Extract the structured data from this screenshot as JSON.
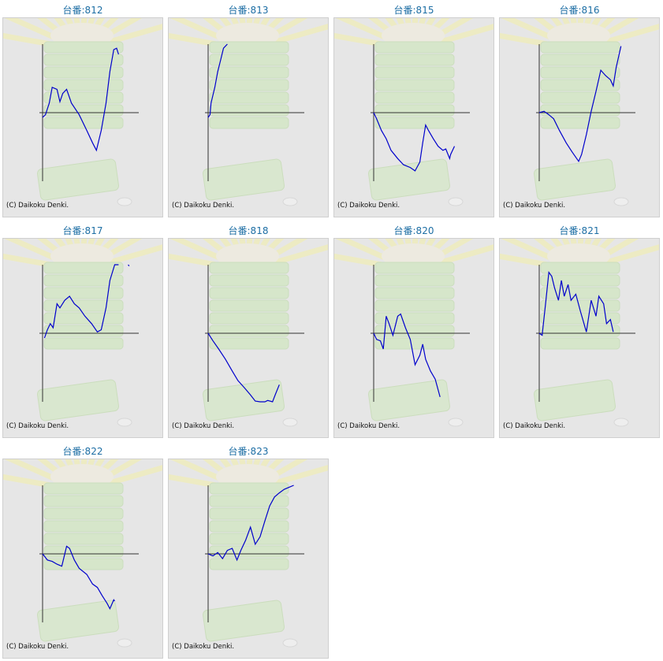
{
  "chart_data": [
    {
      "type": "line",
      "title": "台番:812",
      "annotation": "(C) Daikoku Denki.",
      "color": "#0000cc",
      "xlim": [
        0,
        100
      ],
      "ylim": [
        -100,
        100
      ],
      "x": [
        0,
        3,
        7,
        10,
        15,
        18,
        21,
        25,
        30,
        38,
        46,
        52,
        56,
        61,
        66,
        70,
        74,
        77,
        79
      ],
      "values": [
        -7,
        -3,
        14,
        37,
        34,
        16,
        28,
        34,
        14,
        -3,
        -26,
        -44,
        -55,
        -26,
        14,
        60,
        92,
        94,
        85
      ]
    },
    {
      "type": "line",
      "title": "台番:813",
      "annotation": "(C) Daikoku Denki.",
      "color": "#0000cc",
      "xlim": [
        0,
        100
      ],
      "ylim": [
        -100,
        100
      ],
      "x": [
        0,
        2,
        3,
        7,
        10,
        13,
        16,
        20
      ],
      "values": [
        -7,
        -3,
        14,
        37,
        60,
        77,
        94,
        100
      ]
    },
    {
      "type": "line",
      "title": "台番:815",
      "annotation": "(C) Daikoku Denki.",
      "color": "#0000cc",
      "xlim": [
        0,
        100
      ],
      "ylim": [
        -100,
        100
      ],
      "x": [
        0,
        3,
        8,
        13,
        18,
        25,
        31,
        38,
        43,
        48,
        51,
        54,
        57,
        62,
        67,
        72,
        75,
        79,
        80,
        84
      ],
      "values": [
        0,
        -9,
        -26,
        -38,
        -55,
        -67,
        -76,
        -80,
        -85,
        -72,
        -44,
        -18,
        -26,
        -38,
        -49,
        -55,
        -53,
        -67,
        -61,
        -49
      ]
    },
    {
      "type": "line",
      "title": "台番:816",
      "annotation": "(C) Daikoku Denki.",
      "color": "#0000cc",
      "xlim": [
        0,
        100
      ],
      "ylim": [
        -100,
        100
      ],
      "x": [
        0,
        5,
        10,
        15,
        21,
        28,
        34,
        41,
        44,
        49,
        54,
        59,
        64,
        69,
        74,
        77,
        80,
        85
      ],
      "values": [
        0,
        2,
        -3,
        -9,
        -26,
        -44,
        -57,
        -71,
        -61,
        -32,
        2,
        31,
        62,
        54,
        48,
        39,
        66,
        97
      ]
    },
    {
      "type": "line",
      "title": "台番:817",
      "annotation": "(C) Daikoku Denki.",
      "color": "#0000cc",
      "xlim": [
        0,
        100
      ],
      "ylim": [
        -100,
        100
      ],
      "x": [
        2,
        5,
        8,
        11,
        15,
        18,
        23,
        28,
        33,
        38,
        44,
        51,
        57,
        61,
        66,
        70,
        75,
        79,
        84,
        89,
        90
      ],
      "values": [
        -7,
        5,
        14,
        8,
        43,
        37,
        48,
        54,
        43,
        37,
        25,
        14,
        2,
        5,
        37,
        77,
        100,
        100,
        null,
        100,
        98
      ]
    },
    {
      "type": "line",
      "title": "台番:818",
      "annotation": "(C) Daikoku Denki.",
      "color": "#0000cc",
      "xlim": [
        0,
        100
      ],
      "ylim": [
        -100,
        100
      ],
      "x": [
        0,
        5,
        11,
        18,
        25,
        31,
        38,
        44,
        49,
        54,
        59,
        62,
        67,
        70,
        74
      ],
      "values": [
        0,
        -11,
        -23,
        -38,
        -55,
        -69,
        -80,
        -90,
        -99,
        -100,
        -100,
        -98,
        -100,
        -89,
        -75
      ]
    },
    {
      "type": "line",
      "title": "台番:820",
      "annotation": "(C) Daikoku Denki.",
      "color": "#0000cc",
      "xlim": [
        0,
        100
      ],
      "ylim": [
        -100,
        100
      ],
      "x": [
        0,
        3,
        7,
        10,
        13,
        16,
        20,
        25,
        28,
        33,
        38,
        43,
        48,
        51,
        54,
        59,
        64,
        69
      ],
      "values": [
        0,
        -9,
        -11,
        -23,
        25,
        14,
        -3,
        25,
        28,
        8,
        -9,
        -46,
        -32,
        -16,
        -38,
        -55,
        -67,
        -93
      ]
    },
    {
      "type": "line",
      "title": "台番:821",
      "annotation": "(C) Daikoku Denki.",
      "color": "#0000cc",
      "xlim": [
        0,
        100
      ],
      "ylim": [
        -100,
        100
      ],
      "x": [
        0,
        3,
        7,
        10,
        13,
        16,
        20,
        23,
        26,
        30,
        33,
        38,
        43,
        49,
        54,
        59,
        62,
        67,
        70,
        74,
        77
      ],
      "values": [
        0,
        -3,
        48,
        89,
        83,
        66,
        48,
        77,
        54,
        71,
        48,
        57,
        31,
        2,
        48,
        25,
        54,
        43,
        14,
        20,
        2
      ]
    },
    {
      "type": "line",
      "title": "台番:822",
      "annotation": "(C) Daikoku Denki.",
      "color": "#0000cc",
      "xlim": [
        0,
        100
      ],
      "ylim": [
        -100,
        100
      ],
      "x": [
        0,
        5,
        10,
        15,
        20,
        25,
        28,
        33,
        38,
        46,
        52,
        57,
        62,
        67,
        70,
        74,
        75
      ],
      "values": [
        0,
        -9,
        -11,
        -15,
        -18,
        11,
        8,
        -9,
        -21,
        -30,
        -44,
        -49,
        -61,
        -72,
        -80,
        -67,
        -69
      ]
    },
    {
      "type": "line",
      "title": "台番:823",
      "annotation": "(C) Daikoku Denki.",
      "color": "#0000cc",
      "xlim": [
        0,
        100
      ],
      "ylim": [
        -100,
        100
      ],
      "x": [
        0,
        5,
        10,
        15,
        20,
        25,
        30,
        34,
        39,
        44,
        49,
        54,
        59,
        64,
        69,
        74,
        79,
        84,
        89
      ],
      "values": [
        0,
        -3,
        2,
        -7,
        5,
        8,
        -9,
        5,
        20,
        39,
        14,
        25,
        48,
        70,
        83,
        89,
        94,
        97,
        100
      ]
    }
  ]
}
